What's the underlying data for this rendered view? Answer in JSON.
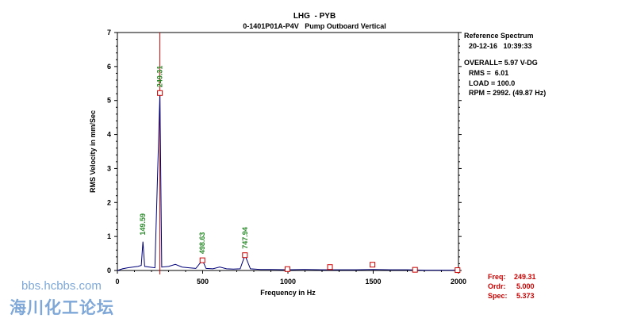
{
  "chart_data": {
    "type": "line",
    "title": "LHG  - PYB",
    "subtitle": "0-1401P01A-P4V   Pump Outboard Vertical",
    "xlabel": "Frequency in Hz",
    "ylabel": "RMS Velocity in mm/Sec",
    "xlim": [
      0,
      2000
    ],
    "ylim": [
      0,
      7
    ],
    "x_ticks": [
      "0",
      "500",
      "1000",
      "1500",
      "2000"
    ],
    "y_ticks": [
      "0",
      "1",
      "2",
      "3",
      "4",
      "5",
      "6",
      "7"
    ],
    "grid": false,
    "series": [
      {
        "x": [
          0,
          30,
          60,
          90,
          120,
          140,
          149.59,
          160,
          190,
          220,
          249.31,
          260,
          300,
          340,
          380,
          420,
          460,
          498.63,
          520,
          560,
          600,
          640,
          680,
          720,
          747.94,
          780,
          840,
          900,
          1000,
          1100,
          1200,
          1300,
          1400,
          1500,
          1600,
          1700,
          1800,
          1900,
          2000
        ],
        "y": [
          0.0,
          0.05,
          0.08,
          0.1,
          0.12,
          0.15,
          0.85,
          0.12,
          0.1,
          0.08,
          5.2,
          0.1,
          0.12,
          0.18,
          0.1,
          0.08,
          0.06,
          0.3,
          0.06,
          0.05,
          0.1,
          0.05,
          0.04,
          0.05,
          0.45,
          0.05,
          0.03,
          0.03,
          0.02,
          0.03,
          0.02,
          0.02,
          0.02,
          0.03,
          0.02,
          0.02,
          0.01,
          0.01,
          0.01
        ]
      }
    ],
    "peak_labels": [
      {
        "x": 149.59,
        "y": 0.85,
        "label": "149.59"
      },
      {
        "x": 249.31,
        "y": 5.2,
        "label": "249.31"
      },
      {
        "x": 498.63,
        "y": 0.3,
        "label": "498.63"
      },
      {
        "x": 747.94,
        "y": 0.45,
        "label": "747.94"
      }
    ],
    "harmonic_markers": [
      {
        "x": 249.31,
        "y": 5.22
      },
      {
        "x": 498.63,
        "y": 0.3
      },
      {
        "x": 747.94,
        "y": 0.45
      },
      {
        "x": 997.3,
        "y": 0.04
      },
      {
        "x": 1246.6,
        "y": 0.1
      },
      {
        "x": 1495.9,
        "y": 0.17
      },
      {
        "x": 1745.2,
        "y": 0.02
      },
      {
        "x": 1994.5,
        "y": 0.01
      }
    ],
    "cursor_x": 249.31
  },
  "reference": {
    "title": "Reference Spectrum",
    "date_time": "20-12-16   10:39:33",
    "overall": "OVERALL= 5.97 V-DG",
    "rms": "RMS =  6.01",
    "load": "LOAD = 100.0",
    "rpm": "RPM = 2992. (49.87 Hz)"
  },
  "cursor": {
    "freq_label": "Freq:",
    "freq_value": "249.31",
    "ordr_label": "Ordr:",
    "ordr_value": "5.000",
    "spec_label": "Spec:",
    "spec_value": "5.373"
  },
  "watermark": {
    "url": "bbs.hcbbs.com",
    "name": "海川化工论坛"
  },
  "colors": {
    "spectrum": "#00007a",
    "cursor": "#cc0000",
    "peak_label": "#2a8a2a",
    "marker": "#cc0000"
  }
}
